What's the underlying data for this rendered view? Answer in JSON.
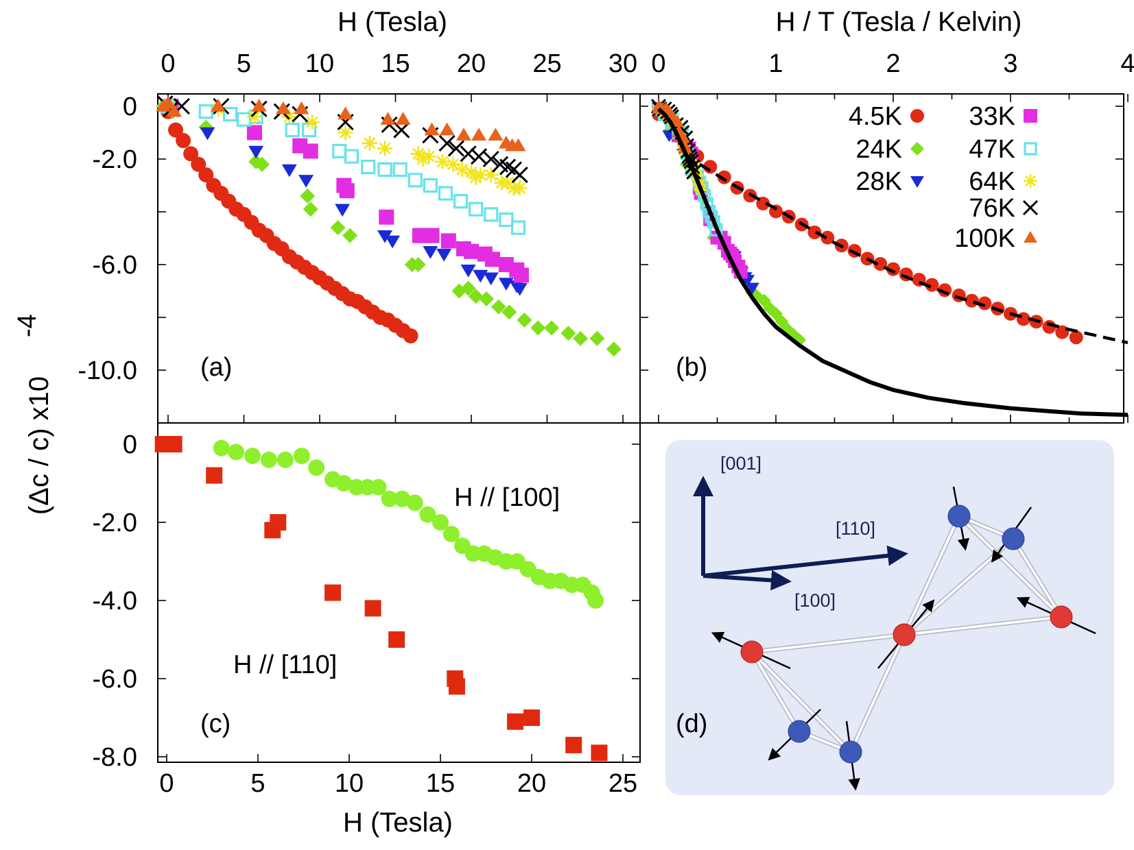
{
  "chart_data": [
    {
      "panel": "(a)",
      "type": "scatter",
      "title": "",
      "xlabel": "H (Tesla)",
      "ylabel": "(Δc / c) x10^-4",
      "xlim": [
        -1,
        31
      ],
      "ylim": [
        -11.8,
        0.2
      ],
      "xticks": [
        "0",
        "5",
        "10",
        "15",
        "20",
        "25",
        "30"
      ],
      "yticks": [
        "0",
        "-2.0",
        "-6.0",
        "-10.0"
      ],
      "series": [
        {
          "name": "4.5K",
          "marker": "circle",
          "color": "#e12a13",
          "x": [
            0,
            0.5,
            1,
            1.5,
            2,
            2.5,
            3,
            3.5,
            4,
            4.5,
            5,
            5.5,
            6,
            6.5,
            7,
            7.5,
            8,
            8.5,
            9,
            9.5,
            10,
            10.5,
            11,
            11.5,
            12,
            12.5,
            13,
            13.5,
            14,
            14.5,
            15,
            15.5,
            16
          ],
          "y": [
            -0.2,
            -0.9,
            -1.3,
            -1.8,
            -2.2,
            -2.6,
            -3.0,
            -3.3,
            -3.6,
            -3.9,
            -4.1,
            -4.4,
            -4.7,
            -4.9,
            -5.2,
            -5.4,
            -5.7,
            -5.9,
            -6.1,
            -6.3,
            -6.5,
            -6.7,
            -6.9,
            -7.1,
            -7.3,
            -7.4,
            -7.6,
            -7.8,
            -8.0,
            -8.1,
            -8.3,
            -8.5,
            -8.7
          ]
        },
        {
          "name": "24K",
          "marker": "diamond",
          "color": "#7fe01a",
          "x": [
            -0.3,
            0.3,
            2.5,
            5.8,
            6.2,
            9.2,
            9.4,
            11.2,
            12.0,
            16.1,
            16.5,
            19.2,
            19.8,
            20.3,
            21.0,
            21.8,
            22.5,
            23.5,
            24.4,
            25.3,
            26.4,
            27.2,
            28.3,
            29.4
          ],
          "y": [
            0,
            -0.2,
            -0.8,
            -2.1,
            -2.2,
            -3.4,
            -3.9,
            -4.6,
            -4.9,
            -6.0,
            -6.0,
            -7.0,
            -6.9,
            -7.2,
            -7.3,
            -7.6,
            -7.8,
            -8.1,
            -8.4,
            -8.4,
            -8.6,
            -8.8,
            -8.8,
            -9.2
          ]
        },
        {
          "name": "28K",
          "marker": "triangle-down",
          "color": "#1a2bd6",
          "x": [
            0,
            2.6,
            5.8,
            8.0,
            9.1,
            11.5,
            14.3,
            14.8,
            17.3,
            18.2,
            19.8,
            20.6,
            21.3,
            22.3,
            23.0,
            23.2
          ],
          "y": [
            0,
            -1.0,
            -1.7,
            -2.4,
            -2.8,
            -3.9,
            -4.9,
            -5.1,
            -5.5,
            -5.6,
            -6.2,
            -6.4,
            -6.5,
            -6.7,
            -6.8,
            -6.9
          ]
        },
        {
          "name": "33K",
          "marker": "square",
          "color": "#e32de3",
          "x": [
            0.2,
            5.7,
            8.7,
            9.4,
            11.6,
            11.8,
            14.4,
            16.6,
            17.4,
            18.5,
            19.5,
            20.0,
            20.9,
            21.4,
            22.3,
            23.0,
            23.3
          ],
          "y": [
            0,
            -1.0,
            -1.5,
            -1.7,
            -3.0,
            -3.2,
            -4.2,
            -4.9,
            -4.9,
            -5.1,
            -5.4,
            -5.5,
            -5.6,
            -5.8,
            -6.0,
            -6.2,
            -6.4
          ]
        },
        {
          "name": "47K",
          "marker": "square-open",
          "color": "#67e3e9",
          "x": [
            0,
            2.5,
            4.1,
            5.0,
            5.8,
            8.2,
            9.3,
            11.3,
            12.1,
            13.2,
            14.3,
            15.3,
            16.3,
            17.3,
            18.3,
            19.3,
            20.3,
            21.3,
            22.3,
            23.1
          ],
          "y": [
            0,
            -0.2,
            -0.3,
            -0.5,
            -0.4,
            -0.9,
            -0.9,
            -1.7,
            -1.9,
            -2.3,
            -2.4,
            -2.4,
            -2.8,
            -3.0,
            -3.3,
            -3.6,
            -3.9,
            -4.1,
            -4.3,
            -4.6
          ]
        },
        {
          "name": "64K",
          "marker": "star",
          "color": "#f2e41b",
          "x": [
            0,
            3.3,
            5.7,
            8.0,
            9.5,
            11.7,
            13.3,
            14.3,
            16.5,
            16.8,
            17.2,
            18.1,
            18.8,
            19.4,
            20.0,
            20.3,
            20.6,
            21.3,
            22.0,
            22.4,
            22.8,
            23.2
          ],
          "y": [
            0,
            -0.1,
            -0.4,
            -0.4,
            -0.6,
            -1.0,
            -1.4,
            -1.6,
            -1.8,
            -2.0,
            -1.9,
            -2.1,
            -2.2,
            -2.4,
            -2.5,
            -2.7,
            -2.6,
            -2.6,
            -2.9,
            -2.9,
            -3.1,
            -3.1
          ]
        },
        {
          "name": "76K",
          "marker": "x",
          "color": "#000000",
          "x": [
            -0.2,
            0.2,
            0.9,
            3.5,
            6.0,
            7.5,
            8.7,
            11.7,
            14.6,
            15.4,
            17.3,
            18.4,
            19.0,
            19.8,
            20.5,
            21.3,
            21.9,
            22.4,
            22.8,
            23.2
          ],
          "y": [
            0.1,
            -0.1,
            0,
            0,
            -0.1,
            -0.2,
            -0.3,
            -0.6,
            -0.7,
            -0.9,
            -1.1,
            -1.4,
            -1.6,
            -1.8,
            -1.9,
            -2.0,
            -2.2,
            -2.3,
            -2.4,
            -2.6
          ]
        },
        {
          "name": "100K",
          "marker": "triangle-up",
          "color": "#e8621c",
          "x": [
            -0.3,
            0,
            0.4,
            3.3,
            6.0,
            7.6,
            8.8,
            11.7,
            14.5,
            15.5,
            17.4,
            18.4,
            19.5,
            20.5,
            21.6,
            22.3,
            22.7,
            23.1
          ],
          "y": [
            0,
            0.1,
            -0.2,
            0,
            0,
            -0.1,
            -0.1,
            -0.3,
            -0.5,
            -0.5,
            -0.9,
            -0.9,
            -1.1,
            -1.1,
            -1.1,
            -1.4,
            -1.5,
            -1.5
          ]
        }
      ]
    },
    {
      "panel": "(b)",
      "type": "scatter",
      "title": "",
      "xlabel": "H / T (Tesla / Kelvin)",
      "ylabel": "",
      "xlim": [
        -0.05,
        4
      ],
      "ylim": [
        -11.8,
        0.2
      ],
      "xticks": [
        "0",
        "1",
        "2",
        "3",
        "4"
      ],
      "legend": {
        "position": "top-right",
        "entries": [
          "4.5K",
          "33K",
          "24K",
          "47K",
          "28K",
          "64K",
          "76K",
          "100K"
        ]
      },
      "series": [
        {
          "name": "4.5K",
          "marker": "circle",
          "color": "#e12a13",
          "x": [
            0,
            0.11,
            0.22,
            0.33,
            0.44,
            0.56,
            0.67,
            0.78,
            0.89,
            1.0,
            1.11,
            1.22,
            1.33,
            1.44,
            1.56,
            1.67,
            1.78,
            1.89,
            2.0,
            2.11,
            2.22,
            2.33,
            2.44,
            2.56,
            2.67,
            2.78,
            2.89,
            3.0,
            3.11,
            3.22,
            3.33,
            3.44,
            3.56
          ],
          "y": [
            -0.2,
            -0.9,
            -1.3,
            -1.8,
            -2.2,
            -2.6,
            -3.0,
            -3.3,
            -3.6,
            -3.9,
            -4.1,
            -4.4,
            -4.7,
            -4.9,
            -5.2,
            -5.4,
            -5.7,
            -5.9,
            -6.1,
            -6.3,
            -6.5,
            -6.7,
            -6.9,
            -7.1,
            -7.3,
            -7.4,
            -7.6,
            -7.8,
            -8.0,
            -8.1,
            -8.3,
            -8.5,
            -8.7
          ]
        },
        {
          "name": "24K",
          "marker": "diamond",
          "color": "#7fe01a",
          "x": [
            0.0,
            0.1,
            0.24,
            0.26,
            0.38,
            0.47,
            0.67,
            0.7,
            0.8,
            0.83,
            0.9,
            0.95,
            1.0,
            1.05,
            1.1,
            1.15,
            1.2
          ],
          "y": [
            0,
            -0.8,
            -2.1,
            -2.2,
            -3.4,
            -4.9,
            -6.0,
            -6.1,
            -7.0,
            -7.1,
            -7.3,
            -7.6,
            -7.8,
            -8.1,
            -8.4,
            -8.6,
            -8.8
          ]
        },
        {
          "name": "28K",
          "marker": "triangle-down",
          "color": "#1a2bd6",
          "x": [
            0.0,
            0.09,
            0.21,
            0.29,
            0.33,
            0.41,
            0.51,
            0.53,
            0.62,
            0.65,
            0.71,
            0.74,
            0.76,
            0.8
          ],
          "y": [
            0,
            -1.0,
            -1.7,
            -2.4,
            -2.8,
            -3.9,
            -4.9,
            -5.1,
            -5.5,
            -5.6,
            -6.2,
            -6.4,
            -6.5,
            -6.8
          ]
        },
        {
          "name": "33K",
          "marker": "square",
          "color": "#e32de3",
          "x": [
            0.0,
            0.17,
            0.26,
            0.28,
            0.35,
            0.36,
            0.44,
            0.5,
            0.53,
            0.56,
            0.59,
            0.61,
            0.63,
            0.65,
            0.68,
            0.7
          ],
          "y": [
            0,
            -1.0,
            -1.5,
            -1.7,
            -3.0,
            -3.2,
            -4.2,
            -4.9,
            -4.9,
            -5.1,
            -5.4,
            -5.5,
            -5.6,
            -5.8,
            -6.0,
            -6.2
          ]
        },
        {
          "name": "47K",
          "marker": "square-open",
          "color": "#67e3e9",
          "x": [
            0.0,
            0.05,
            0.09,
            0.11,
            0.12,
            0.17,
            0.2,
            0.24,
            0.26,
            0.28,
            0.3,
            0.33,
            0.35,
            0.37,
            0.39,
            0.41,
            0.43,
            0.45,
            0.47,
            0.49
          ],
          "y": [
            0,
            -0.2,
            -0.3,
            -0.5,
            -0.4,
            -0.9,
            -0.9,
            -1.7,
            -1.9,
            -2.3,
            -2.4,
            -2.4,
            -2.8,
            -3.0,
            -3.3,
            -3.6,
            -3.9,
            -4.1,
            -4.3,
            -4.6
          ]
        },
        {
          "name": "64K",
          "marker": "star",
          "color": "#f2e41b",
          "x": [
            0.0,
            0.05,
            0.09,
            0.13,
            0.15,
            0.18,
            0.21,
            0.22,
            0.26,
            0.27,
            0.28,
            0.3,
            0.31,
            0.32,
            0.34,
            0.35,
            0.36
          ],
          "y": [
            0,
            -0.1,
            -0.4,
            -0.4,
            -0.6,
            -1.0,
            -1.4,
            -1.6,
            -1.8,
            -2.0,
            -2.1,
            -2.2,
            -2.4,
            -2.5,
            -2.7,
            -2.9,
            -3.1
          ]
        },
        {
          "name": "76K",
          "marker": "x",
          "color": "#000000",
          "x": [
            0.0,
            0.01,
            0.05,
            0.08,
            0.1,
            0.11,
            0.15,
            0.19,
            0.2,
            0.23,
            0.24,
            0.25,
            0.26,
            0.27,
            0.28,
            0.29,
            0.3
          ],
          "y": [
            0.1,
            0,
            0,
            -0.1,
            -0.2,
            -0.3,
            -0.6,
            -0.7,
            -0.9,
            -1.1,
            -1.4,
            -1.6,
            -1.8,
            -1.9,
            -2.0,
            -2.2,
            -2.4
          ]
        },
        {
          "name": "100K",
          "marker": "triangle-up",
          "color": "#e8621c",
          "x": [
            0.0,
            0.003,
            0.03,
            0.06,
            0.08,
            0.09,
            0.12,
            0.15,
            0.16,
            0.17,
            0.18,
            0.2,
            0.21,
            0.22,
            0.23
          ],
          "y": [
            0,
            0.1,
            0,
            0,
            -0.1,
            -0.1,
            -0.3,
            -0.5,
            -0.5,
            -0.9,
            -0.9,
            -1.1,
            -1.1,
            -1.4,
            -1.5
          ]
        }
      ],
      "fits": [
        {
          "name": "solid fit",
          "style": "solid",
          "color": "#000000",
          "x": [
            0,
            0.05,
            0.1,
            0.15,
            0.2,
            0.3,
            0.4,
            0.5,
            0.6,
            0.7,
            0.8,
            0.9,
            1.0,
            1.2,
            1.4,
            1.6,
            1.8,
            2.0,
            2.3,
            2.6,
            3.0,
            3.3,
            3.6,
            4.0
          ],
          "y": [
            0,
            -0.2,
            -0.5,
            -0.9,
            -1.4,
            -2.4,
            -3.5,
            -4.6,
            -5.6,
            -6.5,
            -7.2,
            -7.8,
            -8.3,
            -9.0,
            -9.6,
            -10.0,
            -10.4,
            -10.7,
            -11.0,
            -11.2,
            -11.4,
            -11.5,
            -11.6,
            -11.65
          ]
        },
        {
          "name": "dashed fit",
          "style": "dashed",
          "color": "#000000",
          "x": [
            0.35,
            0.6,
            1.0,
            1.5,
            2.0,
            2.5,
            3.0,
            3.5,
            4.0
          ],
          "y": [
            -2.1,
            -2.8,
            -3.8,
            -5.1,
            -6.2,
            -7.1,
            -7.8,
            -8.4,
            -8.9
          ]
        }
      ]
    },
    {
      "panel": "(c)",
      "type": "scatter",
      "title": "",
      "xlabel": "H (Tesla)",
      "ylabel": "",
      "xlim": [
        -0.5,
        25
      ],
      "ylim": [
        -8.2,
        0.4
      ],
      "xticks": [
        "0",
        "5",
        "10",
        "15",
        "20",
        "25"
      ],
      "yticks": [
        "0",
        "-2.0",
        "-4.0",
        "-6.0",
        "-8.0"
      ],
      "series": [
        {
          "name": "H // [100]",
          "marker": "circle",
          "color": "#8ef02c",
          "x": [
            3.0,
            3.8,
            4.7,
            5.6,
            6.5,
            7.4,
            8.2,
            9.1,
            9.7,
            10.4,
            11.0,
            11.6,
            12.2,
            12.9,
            13.6,
            14.3,
            15.0,
            15.6,
            16.2,
            16.8,
            17.4,
            18.0,
            18.6,
            19.2,
            19.8,
            20.4,
            21.0,
            21.6,
            22.2,
            22.8,
            23.3,
            23.5
          ],
          "y": [
            -0.1,
            -0.2,
            -0.3,
            -0.4,
            -0.4,
            -0.3,
            -0.6,
            -0.9,
            -1.0,
            -1.1,
            -1.1,
            -1.1,
            -1.4,
            -1.4,
            -1.5,
            -1.8,
            -2.0,
            -2.3,
            -2.6,
            -2.8,
            -2.8,
            -2.9,
            -3.0,
            -3.0,
            -3.2,
            -3.4,
            -3.5,
            -3.5,
            -3.6,
            -3.6,
            -3.8,
            -4.0
          ]
        },
        {
          "name": "H // [110]",
          "marker": "square",
          "color": "#e02a10",
          "x": [
            -0.2,
            0.1,
            0.4,
            2.6,
            5.8,
            6.1,
            9.1,
            11.3,
            12.6,
            15.8,
            15.9,
            19.1,
            20.0,
            22.3,
            23.7
          ],
          "y": [
            0,
            0,
            0,
            -0.8,
            -2.2,
            -2.0,
            -3.8,
            -4.2,
            -5.0,
            -6.0,
            -6.2,
            -7.1,
            -7.0,
            -7.7,
            -7.9
          ]
        }
      ],
      "annotations": [
        "H // [100]",
        "H // [110]"
      ]
    }
  ],
  "panels": {
    "a_label": "(a)",
    "b_label": "(b)",
    "c_label": "(c)",
    "d_label": "(d)"
  },
  "axes": {
    "top_left_title": "H (Tesla)",
    "top_right_title": "H / T (Tesla / Kelvin)",
    "bottom_title": "H (Tesla)",
    "y_title": "(Δc / c) x10",
    "y_title_exp": "-4"
  },
  "legend_colors": {
    "4.5K": "#e12a13",
    "33K": "#e32de3",
    "24K": "#7fe01a",
    "47K": "#67e3e9",
    "28K": "#1a2bd6",
    "64K": "#f2e41b",
    "76K": "#000000",
    "100K": "#e8621c"
  },
  "diagram": {
    "background": "#e3e9f7",
    "axis_labels": [
      "[001]",
      "[110]",
      "[100]"
    ]
  }
}
